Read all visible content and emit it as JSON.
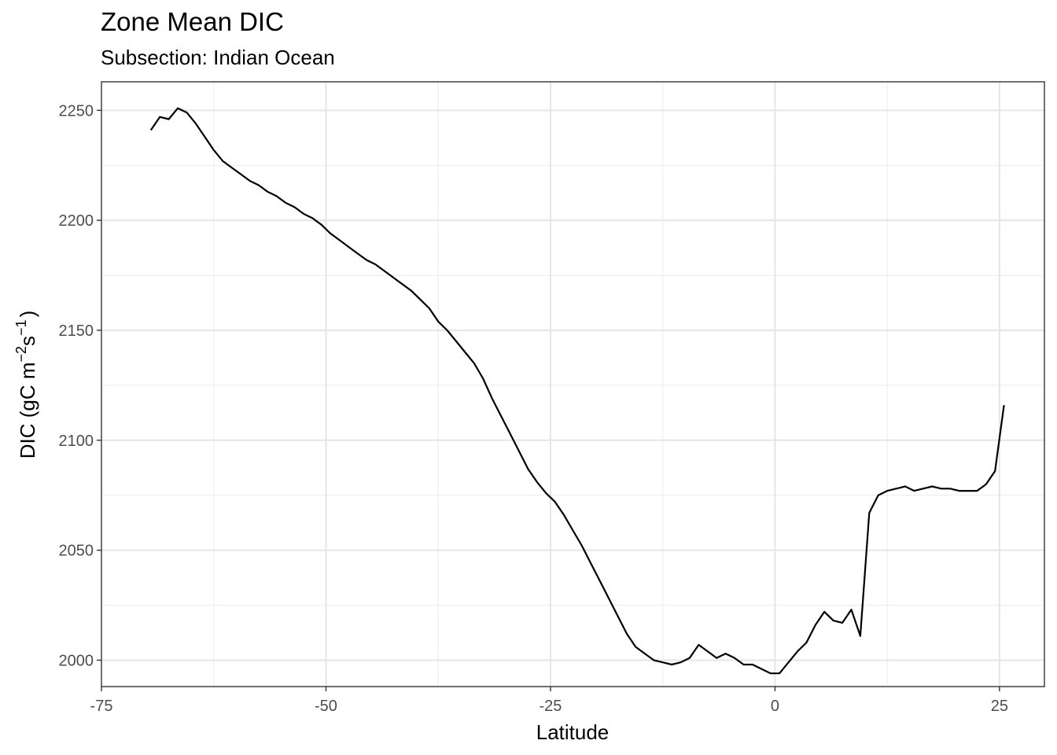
{
  "chart_data": {
    "type": "line",
    "title": "Zone Mean DIC",
    "subtitle": "Subsection: Indian Ocean",
    "xlabel": "Latitude",
    "ylabel": {
      "base": "DIC (gC m",
      "exp1": "−2",
      "mid": "s",
      "exp2": "−1",
      "end": ")"
    },
    "xlim": [
      -75,
      30
    ],
    "ylim": [
      1988,
      2263
    ],
    "x_ticks": [
      -75,
      -50,
      -25,
      0,
      25
    ],
    "x_tick_labels": [
      "-75",
      "-50",
      "-25",
      "0",
      "25"
    ],
    "y_ticks": [
      2000,
      2050,
      2100,
      2150,
      2200,
      2250
    ],
    "y_tick_labels": [
      "2000",
      "2050",
      "2100",
      "2150",
      "2200",
      "2250"
    ],
    "grid": true,
    "legend": "none",
    "line_color": "#000000",
    "series": [
      {
        "x": [
          -69.5,
          -68.5,
          -67.5,
          -66.5,
          -65.5,
          -64.5,
          -63.5,
          -62.5,
          -61.5,
          -60.5,
          -59.5,
          -58.5,
          -57.5,
          -56.5,
          -55.5,
          -54.5,
          -53.5,
          -52.5,
          -51.5,
          -50.5,
          -49.5,
          -48.5,
          -47.5,
          -46.5,
          -45.5,
          -44.5,
          -43.5,
          -42.5,
          -41.5,
          -40.5,
          -39.5,
          -38.5,
          -37.5,
          -36.5,
          -35.5,
          -34.5,
          -33.5,
          -32.5,
          -31.5,
          -30.5,
          -29.5,
          -28.5,
          -27.5,
          -26.5,
          -25.5,
          -24.5,
          -23.5,
          -22.5,
          -21.5,
          -20.5,
          -19.5,
          -18.5,
          -17.5,
          -16.5,
          -15.5,
          -14.5,
          -13.5,
          -12.5,
          -11.5,
          -10.5,
          -9.5,
          -8.5,
          -7.5,
          -6.5,
          -5.5,
          -4.5,
          -3.5,
          -2.5,
          -1.5,
          -0.5,
          0.5,
          1.5,
          2.5,
          3.5,
          4.5,
          5.5,
          6.5,
          7.5,
          8.5,
          9.5,
          10.5,
          11.5,
          12.5,
          13.5,
          14.5,
          15.5,
          16.5,
          17.5,
          18.5,
          19.5,
          20.5,
          21.5,
          22.5,
          23.5,
          24.5,
          25.5
        ],
        "y": [
          2241,
          2247,
          2246,
          2251,
          2249,
          2244,
          2238,
          2232,
          2227,
          2224,
          2221,
          2218,
          2216,
          2213,
          2211,
          2208,
          2206,
          2203,
          2201,
          2198,
          2194,
          2191,
          2188,
          2185,
          2182,
          2180,
          2177,
          2174,
          2171,
          2168,
          2164,
          2160,
          2154,
          2150,
          2145,
          2140,
          2135,
          2128,
          2119,
          2111,
          2103,
          2095,
          2087,
          2081,
          2076,
          2072,
          2066,
          2059,
          2052,
          2044,
          2036,
          2028,
          2020,
          2012,
          2006,
          2003,
          2000,
          1999,
          1998,
          1999,
          2001,
          2007,
          2004,
          2001,
          2003,
          2001,
          1998,
          1998,
          1996,
          1994,
          1994,
          1999,
          2004,
          2008,
          2016,
          2022,
          2018,
          2017,
          2023,
          2011,
          2067,
          2075,
          2077,
          2078,
          2079,
          2077,
          2078,
          2079,
          2078,
          2078,
          2077,
          2077,
          2077,
          2080,
          2086,
          2116
        ]
      }
    ]
  }
}
